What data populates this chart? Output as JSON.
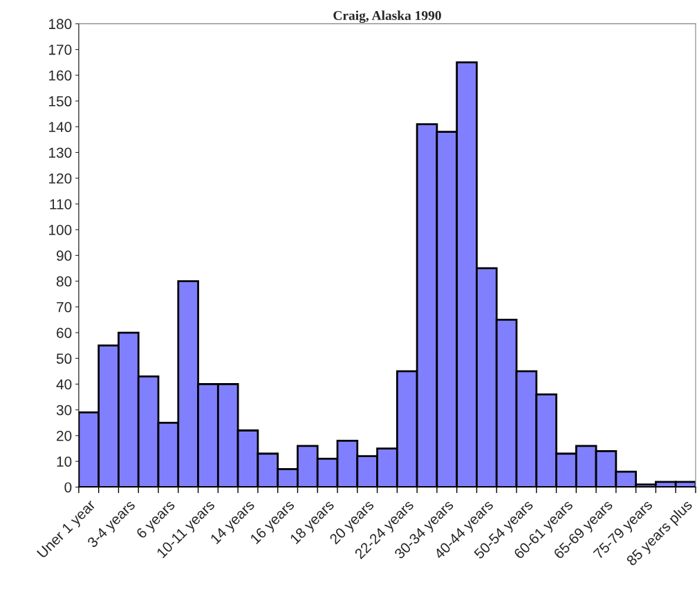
{
  "chart_data": {
    "type": "bar",
    "title": "Craig, Alaska 1990",
    "categories": [
      "Uner 1 year",
      null,
      "3-4 years",
      null,
      "6 years",
      null,
      "10-11 years",
      null,
      "14 years",
      null,
      "16 years",
      null,
      "18 years",
      null,
      "20 years",
      null,
      "22-24 years",
      null,
      "30-34 years",
      null,
      "40-44 years",
      null,
      "50-54 years",
      null,
      "60-61 years",
      null,
      "65-69 years",
      null,
      "75-79 years",
      null,
      "85 years plus"
    ],
    "values": [
      29,
      55,
      60,
      43,
      25,
      80,
      40,
      40,
      22,
      13,
      7,
      16,
      11,
      18,
      12,
      15,
      45,
      141,
      138,
      165,
      85,
      65,
      45,
      36,
      13,
      16,
      14,
      6,
      1,
      2,
      2
    ],
    "color": "#8080ff",
    "ylim": [
      0,
      180
    ],
    "yticks": [
      0,
      10,
      20,
      30,
      40,
      50,
      60,
      70,
      80,
      90,
      100,
      110,
      120,
      130,
      140,
      150,
      160,
      170,
      180
    ],
    "grid": false,
    "legend": false
  }
}
